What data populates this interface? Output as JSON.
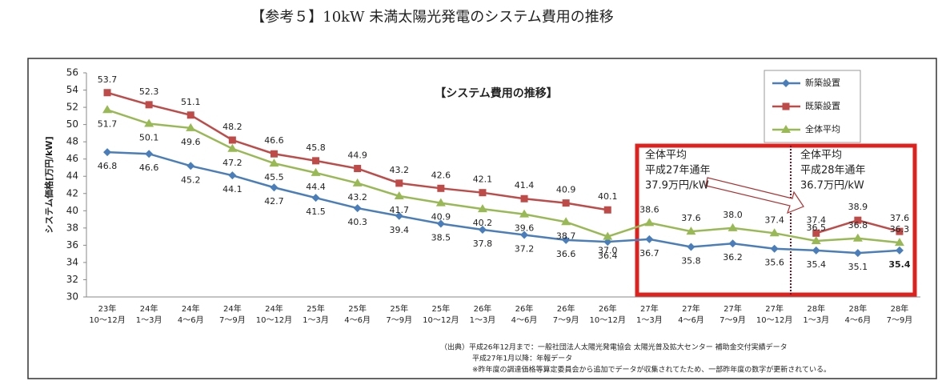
{
  "title": "【参考５】10kW 未満太陽光発電のシステム費用の推移",
  "chart_data": {
    "type": "line",
    "title": "【システム費用の推移】",
    "y_label": "システム価格[万円/kW]",
    "categories": [
      {
        "year": "23年",
        "period": "10～12月"
      },
      {
        "year": "24年",
        "period": "1～3月"
      },
      {
        "year": "24年",
        "period": "4～6月"
      },
      {
        "year": "24年",
        "period": "7～9月"
      },
      {
        "year": "24年",
        "period": "10～12月"
      },
      {
        "year": "25年",
        "period": "1～3月"
      },
      {
        "year": "25年",
        "period": "4～6月"
      },
      {
        "year": "25年",
        "period": "7～9月"
      },
      {
        "year": "25年",
        "period": "10～12月"
      },
      {
        "year": "26年",
        "period": "1～3月"
      },
      {
        "year": "26年",
        "period": "4～6月"
      },
      {
        "year": "26年",
        "period": "7～9月"
      },
      {
        "year": "26年",
        "period": "10～12月"
      },
      {
        "year": "27年",
        "period": "1～3月"
      },
      {
        "year": "27年",
        "period": "4～6月"
      },
      {
        "year": "27年",
        "period": "7～9月"
      },
      {
        "year": "27年",
        "period": "10～12月"
      },
      {
        "year": "28年",
        "period": "1～3月"
      },
      {
        "year": "28年",
        "period": "4～6月"
      },
      {
        "year": "28年",
        "period": "7～9月"
      }
    ],
    "series": [
      {
        "name": "新築設置",
        "color": "#4a7ebb",
        "marker": "diamond",
        "values": [
          46.8,
          46.6,
          45.2,
          44.1,
          42.7,
          41.5,
          40.3,
          39.4,
          38.5,
          37.8,
          37.2,
          36.6,
          36.4,
          36.7,
          35.8,
          36.2,
          35.6,
          35.4,
          35.1,
          35.4
        ],
        "value_labels": [
          "46.8",
          "46.6",
          "45.2",
          "44.1",
          "42.7",
          "41.5",
          "40.3",
          "39.4",
          "38.5",
          "37.8",
          "37.2",
          "36.6",
          "36.4",
          "36.7",
          "35.8",
          "36.2",
          "35.6",
          "35.4",
          "35.1",
          "35.4"
        ]
      },
      {
        "name": "既築設置",
        "color": "#be4b48",
        "marker": "square",
        "values": [
          53.7,
          52.3,
          51.1,
          48.2,
          46.6,
          45.8,
          44.9,
          43.2,
          42.6,
          42.1,
          41.4,
          40.9,
          40.1,
          null,
          null,
          null,
          null,
          37.4,
          38.9,
          37.6
        ],
        "value_labels": [
          "53.7",
          "52.3",
          "51.1",
          "48.2",
          "46.6",
          "45.8",
          "44.9",
          "43.2",
          "42.6",
          "42.1",
          "41.4",
          "40.9",
          "40.1",
          null,
          null,
          null,
          null,
          "37.4",
          "38.9",
          "37.6"
        ]
      },
      {
        "name": "全体平均",
        "color": "#98b954",
        "marker": "triangle",
        "values": [
          51.7,
          50.1,
          49.6,
          47.2,
          45.5,
          44.4,
          43.2,
          41.7,
          40.9,
          40.2,
          39.6,
          38.7,
          37.0,
          38.6,
          37.6,
          38.0,
          37.4,
          36.5,
          36.8,
          36.3
        ],
        "value_labels": [
          "51.7",
          "50.1",
          "49.6",
          "47.2",
          "45.5",
          "44.4",
          "43.2",
          "41.7",
          "40.9",
          "40.2",
          "39.6",
          "38.7",
          "37.0",
          "38.6",
          "37.6",
          "38.0",
          "37.4",
          "36.5",
          "36.8",
          "36.3"
        ]
      }
    ],
    "ylim": [
      30,
      56
    ],
    "yticks": [
      30,
      32,
      34,
      36,
      38,
      40,
      42,
      44,
      46,
      48,
      50,
      52,
      54,
      56
    ],
    "annotations": [
      {
        "lines": [
          "全体平均",
          "平成27年通年",
          "37.9万円/kW"
        ]
      },
      {
        "lines": [
          "全体平均",
          "平成28年通年",
          "36.7万円/kW"
        ]
      }
    ],
    "source": [
      "（出典）平成26年12月まで：一般社団法人太陽光発電協会 太陽光普及拡大センター 補助金交付実績データ",
      "平成27年1月以降：年報データ",
      "※昨年度の調達価格等算定委員会から追加でデータが収集されてたため、一部昨年度の数字が更新されている。"
    ]
  }
}
